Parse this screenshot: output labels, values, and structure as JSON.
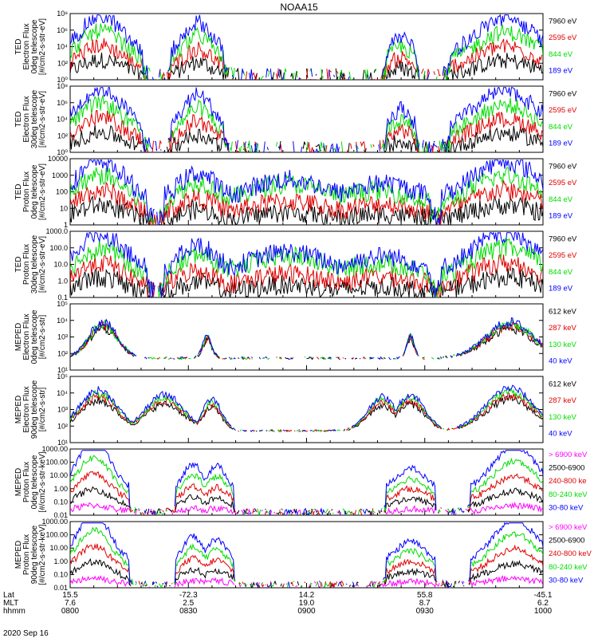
{
  "title": "NOAA15",
  "date": "2020 Sep 16",
  "footer": {
    "row_labels": [
      "Lat",
      "MLT",
      "hhmm"
    ],
    "columns": [
      {
        "lat": "15.5",
        "mlt": "7.6",
        "hhmm": "0800"
      },
      {
        "lat": "-72.3",
        "mlt": "2.5",
        "hhmm": "0830"
      },
      {
        "lat": "14.2",
        "mlt": "19.0",
        "hhmm": "0900"
      },
      {
        "lat": "55.8",
        "mlt": "8.7",
        "hhmm": "0930"
      },
      {
        "lat": "-45.1",
        "mlt": "6.2",
        "hhmm": "1000"
      }
    ]
  },
  "colors": {
    "black": "#000000",
    "red": "#e00000",
    "green": "#00dd00",
    "blue": "#0000ff",
    "magenta": "#ff00ff"
  },
  "chart_data": [
    {
      "type": "line",
      "ylabel": [
        "TED",
        "Electron Flux",
        "0deg telescope",
        "[#/cm2-s-str-eV]"
      ],
      "yticks": [
        "10⁰",
        "10²",
        "10⁴",
        "10⁶",
        "10⁸"
      ],
      "ylim": [
        1,
        100000000
      ],
      "log": true,
      "x": [
        "0800",
        "0830",
        "0900",
        "0930",
        "1000"
      ],
      "series": [
        {
          "name": "7960 eV",
          "color": "black"
        },
        {
          "name": "2595 eV",
          "color": "red"
        },
        {
          "name": "844 eV",
          "color": "green"
        },
        {
          "name": "189 eV",
          "color": "blue"
        }
      ]
    },
    {
      "type": "line",
      "ylabel": [
        "TED",
        "Electron Flux",
        "30deg telescope",
        "[#/cm2-s-str-eV]"
      ],
      "yticks": [
        "10⁰",
        "10²",
        "10⁴",
        "10⁶",
        "10⁸"
      ],
      "ylim": [
        1,
        100000000
      ],
      "log": true,
      "x": [
        "0800",
        "0830",
        "0900",
        "0930",
        "1000"
      ],
      "series": [
        {
          "name": "7960 eV",
          "color": "black"
        },
        {
          "name": "2595 eV",
          "color": "red"
        },
        {
          "name": "844 eV",
          "color": "green"
        },
        {
          "name": "189 eV",
          "color": "blue"
        }
      ]
    },
    {
      "type": "line",
      "ylabel": [
        "TED",
        "Proton Flux",
        "0deg telescope",
        "[#/cm2-s-str-eV]"
      ],
      "yticks": [
        "1",
        "10",
        "100",
        "1000",
        "10000"
      ],
      "ylim": [
        1,
        10000
      ],
      "log": true,
      "x": [
        "0800",
        "0830",
        "0900",
        "0930",
        "1000"
      ],
      "series": [
        {
          "name": "7960 eV",
          "color": "black"
        },
        {
          "name": "2595 eV",
          "color": "red"
        },
        {
          "name": "844 eV",
          "color": "green"
        },
        {
          "name": "189 eV",
          "color": "blue"
        }
      ]
    },
    {
      "type": "line",
      "ylabel": [
        "TED",
        "Proton Flux",
        "30deg telescope",
        "[#/cm2-s-str-eV]"
      ],
      "yticks": [
        "0.1",
        "1.0",
        "10.0",
        "100.0",
        "1000.0"
      ],
      "ylim": [
        0.1,
        1000
      ],
      "log": true,
      "x": [
        "0800",
        "0830",
        "0900",
        "0930",
        "1000"
      ],
      "series": [
        {
          "name": "7960 eV",
          "color": "black"
        },
        {
          "name": "2595 eV",
          "color": "red"
        },
        {
          "name": "844 eV",
          "color": "green"
        },
        {
          "name": "189 eV",
          "color": "blue"
        }
      ]
    },
    {
      "type": "line",
      "ylabel": [
        "MEPED",
        "Electron Flux",
        "0deg telescope",
        "[#/cm2-s-str]"
      ],
      "yticks": [
        "10¹",
        "10²",
        "10³",
        "10⁴",
        "10⁵"
      ],
      "ylim": [
        10,
        100000
      ],
      "log": true,
      "x": [
        "0800",
        "0830",
        "0900",
        "0930",
        "1000"
      ],
      "series": [
        {
          "name": "612 keV",
          "color": "black"
        },
        {
          "name": "287 keV",
          "color": "red"
        },
        {
          "name": "130 keV",
          "color": "green"
        },
        {
          "name": "40 keV",
          "color": "blue"
        }
      ]
    },
    {
      "type": "line",
      "ylabel": [
        "MEPED",
        "Electron Flux",
        "90deg telescope",
        "[#/cm2-s-str]"
      ],
      "yticks": [
        "10¹",
        "10²",
        "10³",
        "10⁴",
        "10⁵"
      ],
      "ylim": [
        10,
        100000
      ],
      "log": true,
      "x": [
        "0800",
        "0830",
        "0900",
        "0930",
        "1000"
      ],
      "series": [
        {
          "name": "612 keV",
          "color": "black"
        },
        {
          "name": "287 keV",
          "color": "red"
        },
        {
          "name": "130 keV",
          "color": "green"
        },
        {
          "name": "40 keV",
          "color": "blue"
        }
      ]
    },
    {
      "type": "line",
      "ylabel": [
        "MEPED",
        "Proton Flux",
        "0deg telescope",
        "[#/cm2-s-str-keV]"
      ],
      "yticks": [
        "0.01",
        "0.10",
        "1.00",
        "10.00",
        "100.00",
        "1000.00"
      ],
      "ylim": [
        0.01,
        1000
      ],
      "log": true,
      "x": [
        "0800",
        "0830",
        "0900",
        "0930",
        "1000"
      ],
      "series": [
        {
          "name": "> 6900 keV",
          "color": "magenta"
        },
        {
          "name": "2500-6900",
          "color": "black"
        },
        {
          "name": "240-800 ke",
          "color": "red"
        },
        {
          "name": "80-240 keV",
          "color": "green"
        },
        {
          "name": "30-80 keV",
          "color": "blue"
        }
      ]
    },
    {
      "type": "line",
      "ylabel": [
        "MEPED",
        "Proton Flux",
        "90deg telescope",
        "[#/cm2-s-str-keV]"
      ],
      "yticks": [
        "0.01",
        "0.10",
        "1.00",
        "10.00",
        "100.00",
        "1000.00"
      ],
      "ylim": [
        0.01,
        1000
      ],
      "log": true,
      "x": [
        "0800",
        "0830",
        "0900",
        "0930",
        "1000"
      ],
      "series": [
        {
          "name": "> 6900 keV",
          "color": "magenta"
        },
        {
          "name": "2500-6900",
          "color": "black"
        },
        {
          "name": "240-800 keV",
          "color": "red"
        },
        {
          "name": "80-240 keV",
          "color": "green"
        },
        {
          "name": "30-80 keV",
          "color": "blue"
        }
      ]
    }
  ]
}
